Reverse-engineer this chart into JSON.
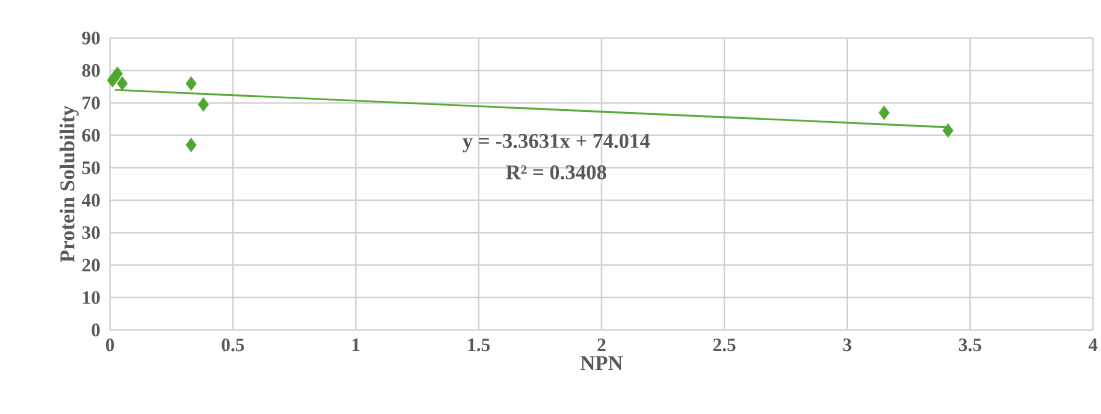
{
  "chart_data": {
    "type": "scatter",
    "xlabel": "NPN",
    "ylabel": "Protein Solubility",
    "annotations": [
      "y = -3.3631x + 74.014",
      "R² = 0.3408"
    ],
    "xlim": [
      0,
      4
    ],
    "ylim": [
      0,
      90
    ],
    "xticks": [
      0,
      0.5,
      1,
      1.5,
      2,
      2.5,
      3,
      3.5,
      4
    ],
    "yticks": [
      0,
      10,
      20,
      30,
      40,
      50,
      60,
      70,
      80,
      90
    ],
    "grid": true,
    "marker": "diamond",
    "series": [
      {
        "color": "#4ea72e",
        "x": [
          0.03,
          0.01,
          0.05,
          0.33,
          0.38,
          0.33,
          3.15,
          3.41
        ],
        "values": [
          79,
          77,
          76,
          76,
          69.5,
          57,
          67,
          61.5
        ]
      },
      {
        "type": "line",
        "color": "#5aac3a",
        "marker": "none",
        "x": [
          0.02,
          3.41
        ],
        "values": [
          74,
          62.5
        ]
      }
    ]
  }
}
